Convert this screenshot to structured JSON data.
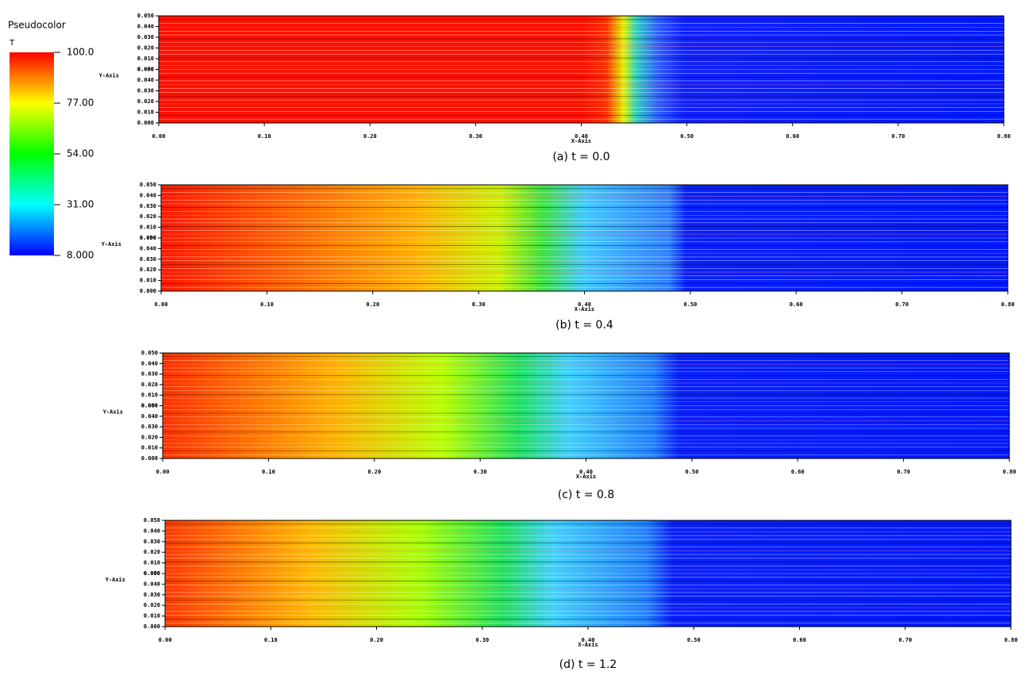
{
  "colorbar": {
    "title": "Pseudocolor",
    "variable": "T",
    "lim": [
      8,
      100
    ],
    "ticks": [
      {
        "value": 100,
        "label": "100.0"
      },
      {
        "value": 77,
        "label": "77.00"
      },
      {
        "value": 54,
        "label": "54.00"
      },
      {
        "value": 31,
        "label": "31.00"
      },
      {
        "value": 8,
        "label": "8.000"
      }
    ]
  },
  "chart_data": [
    {
      "type": "heatmap",
      "caption": "(a) t = 0.0",
      "xlabel": "X-Axis",
      "ylabel": "Y-Axis",
      "xlim": [
        0,
        0.8
      ],
      "ylim": [
        0,
        0.05
      ],
      "xticks": [
        {
          "value": 0,
          "label": "0.00"
        },
        {
          "value": 0.1,
          "label": "0.10"
        },
        {
          "value": 0.2,
          "label": "0.20"
        },
        {
          "value": 0.3,
          "label": "0.30"
        },
        {
          "value": 0.4,
          "label": "0.40"
        },
        {
          "value": 0.5,
          "label": "0.50"
        },
        {
          "value": 0.6,
          "label": "0.60"
        },
        {
          "value": 0.7,
          "label": "0.70"
        },
        {
          "value": 0.8,
          "label": "0.80"
        }
      ],
      "yticks": [
        {
          "value": 0,
          "label": "0.000"
        },
        {
          "value": 0.01,
          "label": "0.010"
        },
        {
          "value": 0.02,
          "label": "0.020"
        },
        {
          "value": 0.03,
          "label": "0.030"
        },
        {
          "value": 0.04,
          "label": "0.040"
        },
        {
          "value": 0.05,
          "label": "0.050"
        }
      ]
    },
    {
      "type": "heatmap",
      "caption": "(b) t = 0.4",
      "xlabel": "X-Axis",
      "ylabel": "Y-Axis",
      "xlim": [
        0,
        0.8
      ],
      "ylim": [
        0,
        0.05
      ],
      "xticks": [
        {
          "value": 0,
          "label": "0.00"
        },
        {
          "value": 0.1,
          "label": "0.10"
        },
        {
          "value": 0.2,
          "label": "0.20"
        },
        {
          "value": 0.3,
          "label": "0.30"
        },
        {
          "value": 0.4,
          "label": "0.40"
        },
        {
          "value": 0.5,
          "label": "0.50"
        },
        {
          "value": 0.6,
          "label": "0.60"
        },
        {
          "value": 0.7,
          "label": "0.70"
        },
        {
          "value": 0.8,
          "label": "0.80"
        }
      ],
      "yticks": [
        {
          "value": 0,
          "label": "0.000"
        },
        {
          "value": 0.01,
          "label": "0.010"
        },
        {
          "value": 0.02,
          "label": "0.020"
        },
        {
          "value": 0.03,
          "label": "0.030"
        },
        {
          "value": 0.04,
          "label": "0.040"
        },
        {
          "value": 0.05,
          "label": "0.050"
        }
      ]
    },
    {
      "type": "heatmap",
      "caption": "(c) t = 0.8",
      "xlabel": "X-Axis",
      "ylabel": "Y-Axis",
      "xlim": [
        0,
        0.8
      ],
      "ylim": [
        0,
        0.05
      ],
      "xticks": [
        {
          "value": 0,
          "label": "0.00"
        },
        {
          "value": 0.1,
          "label": "0.10"
        },
        {
          "value": 0.2,
          "label": "0.20"
        },
        {
          "value": 0.3,
          "label": "0.30"
        },
        {
          "value": 0.4,
          "label": "0.40"
        },
        {
          "value": 0.5,
          "label": "0.50"
        },
        {
          "value": 0.6,
          "label": "0.60"
        },
        {
          "value": 0.7,
          "label": "0.70"
        },
        {
          "value": 0.8,
          "label": "0.80"
        }
      ],
      "yticks": [
        {
          "value": 0,
          "label": "0.000"
        },
        {
          "value": 0.01,
          "label": "0.010"
        },
        {
          "value": 0.02,
          "label": "0.020"
        },
        {
          "value": 0.03,
          "label": "0.030"
        },
        {
          "value": 0.04,
          "label": "0.040"
        },
        {
          "value": 0.05,
          "label": "0.050"
        }
      ]
    },
    {
      "type": "heatmap",
      "caption": "(d) t = 1.2",
      "xlabel": "X-Axis",
      "ylabel": "Y-Axis",
      "xlim": [
        0,
        0.8
      ],
      "ylim": [
        0,
        0.05
      ],
      "xticks": [
        {
          "value": 0,
          "label": "0.00"
        },
        {
          "value": 0.1,
          "label": "0.10"
        },
        {
          "value": 0.2,
          "label": "0.20"
        },
        {
          "value": 0.3,
          "label": "0.30"
        },
        {
          "value": 0.4,
          "label": "0.40"
        },
        {
          "value": 0.5,
          "label": "0.50"
        },
        {
          "value": 0.6,
          "label": "0.60"
        },
        {
          "value": 0.7,
          "label": "0.70"
        },
        {
          "value": 0.8,
          "label": "0.80"
        }
      ],
      "yticks": [
        {
          "value": 0,
          "label": "0.000"
        },
        {
          "value": 0.01,
          "label": "0.010"
        },
        {
          "value": 0.02,
          "label": "0.020"
        },
        {
          "value": 0.03,
          "label": "0.030"
        },
        {
          "value": 0.04,
          "label": "0.040"
        },
        {
          "value": 0.05,
          "label": "0.050"
        }
      ]
    }
  ]
}
